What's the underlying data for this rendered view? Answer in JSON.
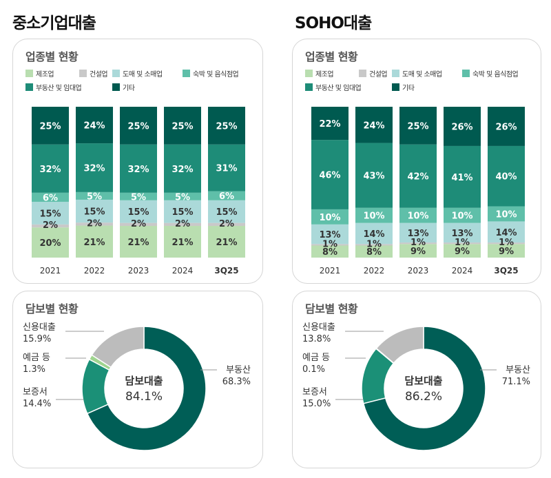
{
  "left": {
    "title": "중소기업대출",
    "industry": {
      "title": "업종별 현황",
      "legend": [
        "제조업",
        "건설업",
        "도매 및 소매업",
        "숙박 및 음식점업",
        "부동산 및 임대업",
        "기타"
      ]
    },
    "collateral": {
      "title": "담보별 현황",
      "center_title": "담보대출",
      "center_value": "84.1%",
      "labels": [
        {
          "name": "신용대출",
          "value": "15.9%"
        },
        {
          "name": "예금 등",
          "value": "1.3%"
        },
        {
          "name": "보증서",
          "value": "14.4%"
        },
        {
          "name": "부동산",
          "value": "68.3%"
        }
      ]
    }
  },
  "right": {
    "title": "SOHO대출",
    "industry": {
      "title": "업종별 현황",
      "legend": [
        "제조업",
        "건설업",
        "도매 및 소매업",
        "숙박 및 음식점업",
        "부동산 및 임대업",
        "기타"
      ]
    },
    "collateral": {
      "title": "담보별 현황",
      "center_title": "담보대출",
      "center_value": "86.2%",
      "labels": [
        {
          "name": "신용대출",
          "value": "13.8%"
        },
        {
          "name": "예금 등",
          "value": "0.1%"
        },
        {
          "name": "보증서",
          "value": "15.0%"
        },
        {
          "name": "부동산",
          "value": "71.1%"
        }
      ]
    }
  },
  "colors": {
    "manufacturing": "#b9deb0",
    "construction": "#c9c9c9",
    "wholesale": "#abd9d9",
    "lodging": "#5fbfa9",
    "realestate": "#1e8c78",
    "other": "#005a50",
    "donut_realestate": "#005e56",
    "donut_guarantee": "#1b9077",
    "donut_deposit": "#9fd48f",
    "donut_credit": "#bcbcbc"
  },
  "chart_data": [
    {
      "type": "bar",
      "stacked": true,
      "categories": [
        "2021",
        "2022",
        "2023",
        "2024",
        "3Q25"
      ],
      "series": [
        {
          "name": "제조업",
          "values": [
            20,
            21,
            21,
            21,
            21
          ],
          "labels": [
            "20%",
            "21%",
            "21%",
            "21%",
            "21%"
          ]
        },
        {
          "name": "건설업",
          "values": [
            2,
            2,
            2,
            2,
            2
          ],
          "labels": [
            "2%",
            "2%",
            "2%",
            "2%",
            "2%"
          ]
        },
        {
          "name": "도매 및 소매업",
          "values": [
            15,
            15,
            15,
            15,
            15
          ],
          "labels": [
            "15%",
            "15%",
            "15%",
            "15%",
            "15%"
          ]
        },
        {
          "name": "숙박 및 음식점업",
          "values": [
            6,
            5,
            5,
            5,
            6
          ],
          "labels": [
            "6%",
            "5%",
            "5%",
            "5%",
            "6%"
          ]
        },
        {
          "name": "부동산 및 임대업",
          "values": [
            32,
            32,
            32,
            32,
            31
          ],
          "labels": [
            "32%",
            "32%",
            "32%",
            "32%",
            "31%"
          ]
        },
        {
          "name": "기타",
          "values": [
            25,
            24,
            25,
            25,
            25
          ],
          "labels": [
            "25%",
            "24%",
            "25%",
            "25%",
            "25%"
          ]
        }
      ],
      "legend": "top-left"
    },
    {
      "type": "bar",
      "stacked": true,
      "categories": [
        "2021",
        "2022",
        "2023",
        "2024",
        "3Q25"
      ],
      "series": [
        {
          "name": "제조업",
          "values": [
            8,
            8,
            9,
            9,
            9
          ],
          "labels": [
            "8%",
            "8%",
            "9%",
            "9%",
            "9%"
          ]
        },
        {
          "name": "건설업",
          "values": [
            1,
            1,
            1,
            1,
            1
          ],
          "labels": [
            "1%",
            "1%",
            "1%",
            "1%",
            "1%"
          ]
        },
        {
          "name": "도매 및 소매업",
          "values": [
            13,
            14,
            13,
            13,
            14
          ],
          "labels": [
            "13%",
            "14%",
            "13%",
            "13%",
            "14%"
          ]
        },
        {
          "name": "숙박 및 음식점업",
          "values": [
            10,
            10,
            10,
            10,
            10
          ],
          "labels": [
            "10%",
            "10%",
            "10%",
            "10%",
            "10%"
          ]
        },
        {
          "name": "부동산 및 임대업",
          "values": [
            46,
            43,
            42,
            41,
            40
          ],
          "labels": [
            "46%",
            "43%",
            "42%",
            "41%",
            "40%"
          ]
        },
        {
          "name": "기타",
          "values": [
            22,
            24,
            25,
            26,
            26
          ],
          "labels": [
            "22%",
            "24%",
            "25%",
            "26%",
            "26%"
          ]
        }
      ],
      "legend": "top-left"
    },
    {
      "type": "pie",
      "donut": true,
      "categories": [
        "부동산",
        "보증서",
        "예금 등",
        "신용대출"
      ],
      "values": [
        68.3,
        14.4,
        1.3,
        15.9
      ]
    },
    {
      "type": "pie",
      "donut": true,
      "categories": [
        "부동산",
        "보증서",
        "예금 등",
        "신용대출"
      ],
      "values": [
        71.1,
        15.0,
        0.1,
        13.8
      ]
    }
  ]
}
